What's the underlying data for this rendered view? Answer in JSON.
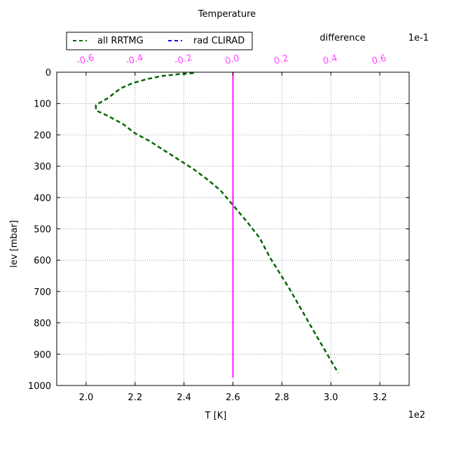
{
  "chart_data": {
    "type": "line",
    "title": "Temperature",
    "xlabel": "T [K]",
    "ylabel": "lev [mbar]",
    "x_offset_text": "1e2",
    "xlim": [
      1.88,
      3.32
    ],
    "x_ticks": [
      "2.0",
      "2.2",
      "2.4",
      "2.6",
      "2.8",
      "3.0",
      "3.2"
    ],
    "ylim": [
      1000,
      0
    ],
    "y_ticks": [
      "0",
      "100",
      "200",
      "300",
      "400",
      "500",
      "600",
      "700",
      "800",
      "900",
      "1000"
    ],
    "grid": true,
    "top_axis": {
      "label": "difference",
      "offset_text": "1e-1",
      "xlim": [
        -0.72,
        0.72
      ],
      "ticks": [
        "-0.6",
        "-0.4",
        "-0.2",
        "0.0",
        "0.2",
        "0.4",
        "0.6"
      ],
      "tick_color": "#ff44ff"
    },
    "legend": {
      "placement": "top-left",
      "entries": [
        {
          "label": "all RRTMG",
          "color": "#006600",
          "style": "dashed"
        },
        {
          "label": "rad CLIRAD",
          "color": "#0000ff",
          "style": "dashed"
        }
      ]
    },
    "series": [
      {
        "name": "all RRTMG",
        "axis": "bottom",
        "color": "#006600",
        "style": "dashed",
        "points": [
          [
            2.44,
            3
          ],
          [
            2.38,
            6
          ],
          [
            2.31,
            12
          ],
          [
            2.25,
            22
          ],
          [
            2.19,
            35
          ],
          [
            2.14,
            52
          ],
          [
            2.09,
            82
          ],
          [
            2.04,
            105
          ],
          [
            2.04,
            122
          ],
          [
            2.09,
            140
          ],
          [
            2.15,
            165
          ],
          [
            2.2,
            195
          ],
          [
            2.26,
            220
          ],
          [
            2.32,
            250
          ],
          [
            2.38,
            280
          ],
          [
            2.44,
            310
          ],
          [
            2.5,
            345
          ],
          [
            2.55,
            378
          ],
          [
            2.59,
            415
          ],
          [
            2.66,
            480
          ],
          [
            2.71,
            530
          ],
          [
            2.75,
            590
          ],
          [
            2.83,
            690
          ],
          [
            2.94,
            840
          ],
          [
            3.03,
            960
          ]
        ]
      },
      {
        "name": "difference",
        "axis": "top",
        "color": "#ff00ff",
        "style": "solid",
        "points": [
          [
            0.0,
            0
          ],
          [
            0.0,
            975
          ]
        ]
      }
    ]
  }
}
